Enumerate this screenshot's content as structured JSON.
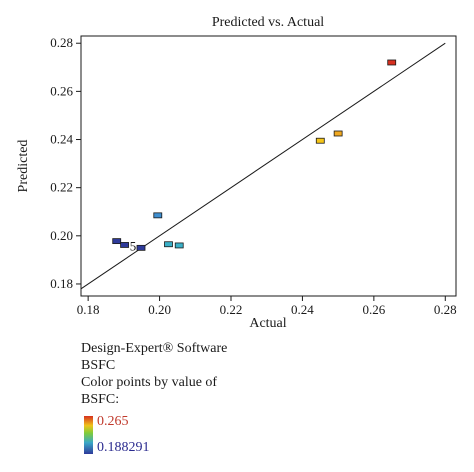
{
  "chart_data": {
    "type": "scatter",
    "title": "Predicted vs. Actual",
    "xlabel": "Actual",
    "ylabel": "Predicted",
    "xlim": [
      0.178,
      0.283
    ],
    "ylim": [
      0.175,
      0.283
    ],
    "xticks": [
      "0.18",
      "0.20",
      "0.22",
      "0.24",
      "0.26",
      "0.28"
    ],
    "yticks": [
      "0.18",
      "0.20",
      "0.22",
      "0.24",
      "0.26",
      "0.28"
    ],
    "grid": false,
    "reference_line": {
      "from": [
        0.178,
        0.178
      ],
      "to": [
        0.28,
        0.28
      ]
    },
    "points": [
      {
        "x": 0.265,
        "y": 0.272,
        "color": "#d7301f"
      },
      {
        "x": 0.25,
        "y": 0.2425,
        "color": "#f0a820"
      },
      {
        "x": 0.245,
        "y": 0.2395,
        "color": "#f5c518"
      },
      {
        "x": 0.1995,
        "y": 0.2085,
        "color": "#3f8fd0"
      },
      {
        "x": 0.2025,
        "y": 0.1965,
        "color": "#3ab0c8"
      },
      {
        "x": 0.2055,
        "y": 0.196,
        "color": "#3ab0c8"
      },
      {
        "x": 0.188,
        "y": 0.1978,
        "color": "#2e3a9a"
      },
      {
        "x": 0.1902,
        "y": 0.1962,
        "color": "#2e3a9a"
      },
      {
        "x": 0.1948,
        "y": 0.195,
        "color": "#2e3a9a"
      }
    ],
    "annotation": {
      "text": "5",
      "x": 0.1925,
      "y": 0.1955
    }
  },
  "info": {
    "software": "Design-Expert® Software",
    "response": "BSFC",
    "color_note": "Color points by value of",
    "color_var": "BSFC:",
    "max_value": "0.265",
    "min_value": "0.188291"
  }
}
